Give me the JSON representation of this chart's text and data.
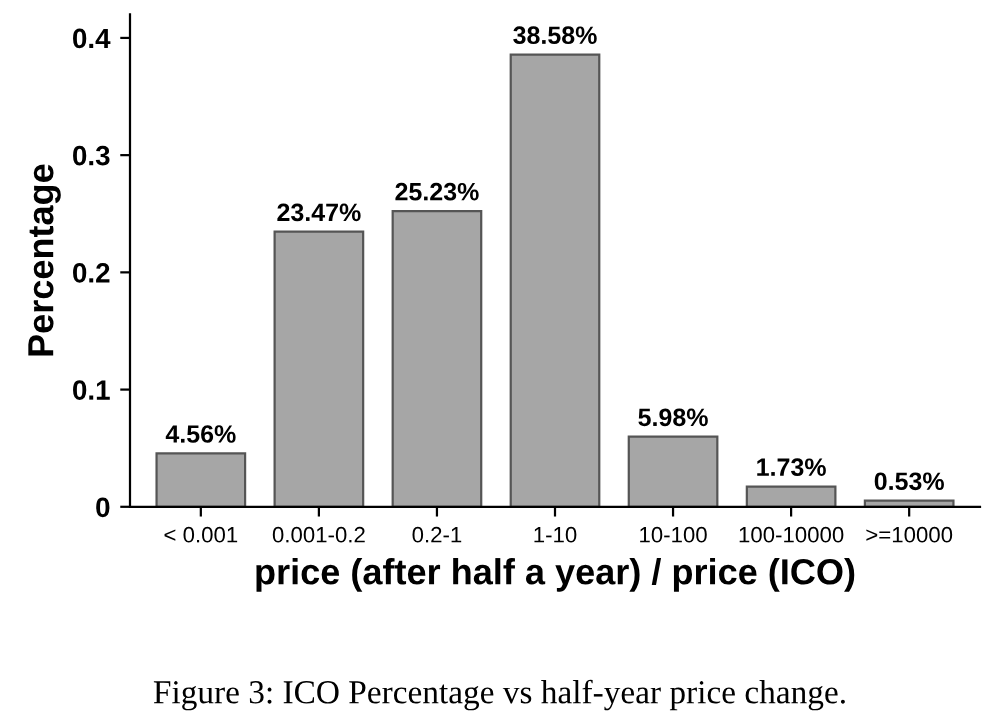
{
  "chart_data": {
    "type": "bar",
    "categories": [
      "< 0.001",
      "0.001-0.2",
      "0.2-1",
      "1-10",
      "10-100",
      "100-10000",
      ">=10000"
    ],
    "values": [
      0.0456,
      0.2347,
      0.2523,
      0.3858,
      0.0598,
      0.0173,
      0.0053
    ],
    "value_labels": [
      "4.56%",
      "23.47%",
      "25.23%",
      "38.58%",
      "5.98%",
      "1.73%",
      "0.53%"
    ],
    "color": "#a6a6a6",
    "xlabel": "price (after half a year) / price (ICO)",
    "ylabel": "Percentage",
    "ylim": [
      0,
      0.42
    ],
    "yticks": [
      0,
      0.1,
      0.2,
      0.3,
      0.4
    ],
    "grid": false,
    "annotations": [
      "Figure 3: ICO Percentage vs half-year price change."
    ]
  }
}
